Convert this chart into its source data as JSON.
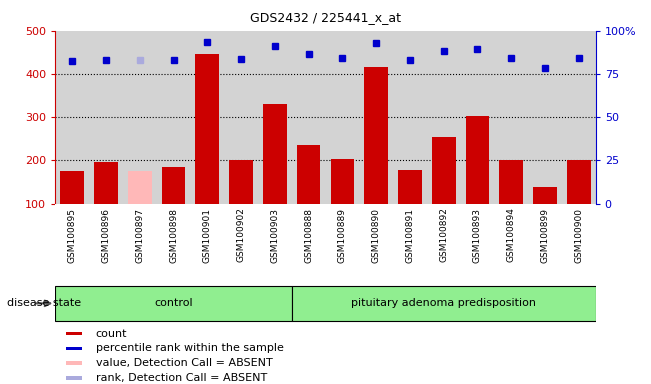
{
  "title": "GDS2432 / 225441_x_at",
  "samples": [
    "GSM100895",
    "GSM100896",
    "GSM100897",
    "GSM100898",
    "GSM100901",
    "GSM100902",
    "GSM100903",
    "GSM100888",
    "GSM100889",
    "GSM100890",
    "GSM100891",
    "GSM100892",
    "GSM100893",
    "GSM100894",
    "GSM100899",
    "GSM100900"
  ],
  "bar_values": [
    175,
    195,
    175,
    185,
    445,
    200,
    330,
    235,
    203,
    415,
    178,
    254,
    303,
    200,
    138,
    200
  ],
  "bar_absent": [
    false,
    false,
    true,
    false,
    false,
    false,
    false,
    false,
    false,
    false,
    false,
    false,
    false,
    false,
    false,
    false
  ],
  "dot_values": [
    430,
    432,
    432,
    432,
    475,
    435,
    465,
    445,
    438,
    472,
    433,
    453,
    458,
    438,
    413,
    437
  ],
  "dot_absent": [
    false,
    false,
    true,
    false,
    false,
    false,
    false,
    false,
    false,
    false,
    false,
    false,
    false,
    false,
    false,
    false
  ],
  "bar_color": "#cc0000",
  "bar_absent_color": "#ffb8b8",
  "dot_color": "#0000cc",
  "dot_absent_color": "#aaaadd",
  "ylim_left": [
    100,
    500
  ],
  "ylim_right": [
    0,
    100
  ],
  "yticks_left": [
    100,
    200,
    300,
    400,
    500
  ],
  "yticks_right": [
    0,
    25,
    50,
    75,
    100
  ],
  "ytick_labels_right": [
    "0",
    "25",
    "50",
    "75",
    "100%"
  ],
  "group1_label": "control",
  "group2_label": "pituitary adenoma predisposition",
  "group1_count": 7,
  "group2_count": 9,
  "disease_state_label": "disease state",
  "legend_items": [
    {
      "label": "count",
      "color": "#cc0000"
    },
    {
      "label": "percentile rank within the sample",
      "color": "#0000cc"
    },
    {
      "label": "value, Detection Call = ABSENT",
      "color": "#ffb8b8"
    },
    {
      "label": "rank, Detection Call = ABSENT",
      "color": "#aaaadd"
    }
  ],
  "bg_color": "#d3d3d3",
  "group_bg": "#90EE90"
}
